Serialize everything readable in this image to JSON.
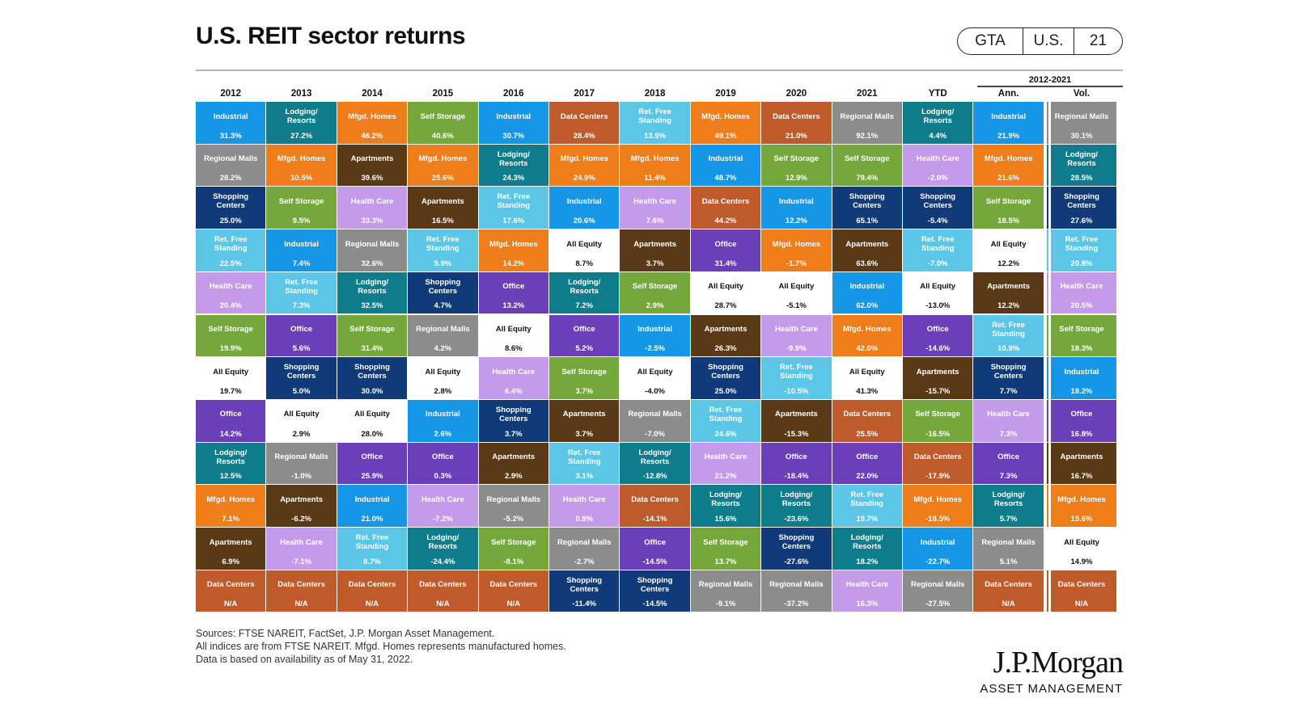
{
  "header": {
    "title": "U.S. REIT sector returns",
    "badge": [
      "GTA",
      "U.S.",
      "21"
    ]
  },
  "column_headers": [
    "2012",
    "2013",
    "2014",
    "2015",
    "2016",
    "2017",
    "2018",
    "2019",
    "2020",
    "2021",
    "YTD",
    "Ann.",
    "Vol."
  ],
  "span_label": "2012-2021",
  "footnotes": [
    "Sources: FTSE NAREIT, FactSet, J.P. Morgan Asset Management.",
    "All indices are from FTSE NAREIT. Mfgd. Homes represents manufactured homes.",
    "Data is based on availability as of May 31, 2022."
  ],
  "logo": {
    "line1": "J.P.Morgan",
    "line2": "ASSET MANAGEMENT"
  },
  "colors": {
    "Industrial": "#1596e6",
    "Lodging/ Resorts": "#0f7c8c",
    "Mfgd. Homes": "#ef7d1a",
    "Self Storage": "#74a83a",
    "Data Centers": "#bf5a2b",
    "Ret. Free Standing": "#5cc6e8",
    "Regional Malls": "#8c8c8c",
    "Health Care": "#c39bea",
    "Shopping Centers": "#103b78",
    "Apartments": "#5a3a16",
    "All Equity": "#ffffff",
    "Office": "#6b3fb8"
  },
  "chart_data": {
    "type": "table",
    "title": "U.S. REIT sector returns",
    "columns": [
      "2012",
      "2013",
      "2014",
      "2015",
      "2016",
      "2017",
      "2018",
      "2019",
      "2020",
      "2021",
      "YTD",
      "Ann.",
      "Vol."
    ],
    "rows": [
      [
        [
          "Industrial",
          "31.3%"
        ],
        [
          "Lodging/ Resorts",
          "27.2%"
        ],
        [
          "Mfgd. Homes",
          "46.2%"
        ],
        [
          "Self Storage",
          "40.6%"
        ],
        [
          "Industrial",
          "30.7%"
        ],
        [
          "Data Centers",
          "28.4%"
        ],
        [
          "Ret. Free Standing",
          "13.9%"
        ],
        [
          "Mfgd. Homes",
          "49.1%"
        ],
        [
          "Data Centers",
          "21.0%"
        ],
        [
          "Regional Malls",
          "92.1%"
        ],
        [
          "Lodging/ Resorts",
          "4.4%"
        ],
        [
          "Industrial",
          "21.9%"
        ],
        [
          "Regional Malls",
          "30.1%"
        ]
      ],
      [
        [
          "Regional Malls",
          "28.2%"
        ],
        [
          "Mfgd. Homes",
          "10.5%"
        ],
        [
          "Apartments",
          "39.6%"
        ],
        [
          "Mfgd. Homes",
          "25.6%"
        ],
        [
          "Lodging/ Resorts",
          "24.3%"
        ],
        [
          "Mfgd. Homes",
          "24.9%"
        ],
        [
          "Mfgd. Homes",
          "11.4%"
        ],
        [
          "Industrial",
          "48.7%"
        ],
        [
          "Self Storage",
          "12.9%"
        ],
        [
          "Self Storage",
          "79.4%"
        ],
        [
          "Health Care",
          "-2.0%"
        ],
        [
          "Mfgd. Homes",
          "21.6%"
        ],
        [
          "Lodging/ Resorts",
          "28.5%"
        ]
      ],
      [
        [
          "Shopping Centers",
          "25.0%"
        ],
        [
          "Self Storage",
          "9.5%"
        ],
        [
          "Health Care",
          "33.3%"
        ],
        [
          "Apartments",
          "16.5%"
        ],
        [
          "Ret. Free Standing",
          "17.6%"
        ],
        [
          "Industrial",
          "20.6%"
        ],
        [
          "Health Care",
          "7.6%"
        ],
        [
          "Data Centers",
          "44.2%"
        ],
        [
          "Industrial",
          "12.2%"
        ],
        [
          "Shopping Centers",
          "65.1%"
        ],
        [
          "Shopping Centers",
          "-5.4%"
        ],
        [
          "Self Storage",
          "18.5%"
        ],
        [
          "Shopping Centers",
          "27.6%"
        ]
      ],
      [
        [
          "Ret. Free Standing",
          "22.5%"
        ],
        [
          "Industrial",
          "7.4%"
        ],
        [
          "Regional Malls",
          "32.6%"
        ],
        [
          "Ret. Free Standing",
          "5.9%"
        ],
        [
          "Mfgd. Homes",
          "14.2%"
        ],
        [
          "All Equity",
          "8.7%"
        ],
        [
          "Apartments",
          "3.7%"
        ],
        [
          "Office",
          "31.4%"
        ],
        [
          "Mfgd. Homes",
          "-1.7%"
        ],
        [
          "Apartments",
          "63.6%"
        ],
        [
          "Ret. Free Standing",
          "-7.0%"
        ],
        [
          "All Equity",
          "12.2%"
        ],
        [
          "Ret. Free Standing",
          "20.8%"
        ]
      ],
      [
        [
          "Health Care",
          "20.4%"
        ],
        [
          "Ret. Free Standing",
          "7.3%"
        ],
        [
          "Lodging/ Resorts",
          "32.5%"
        ],
        [
          "Shopping Centers",
          "4.7%"
        ],
        [
          "Office",
          "13.2%"
        ],
        [
          "Lodging/ Resorts",
          "7.2%"
        ],
        [
          "Self Storage",
          "2.9%"
        ],
        [
          "All Equity",
          "28.7%"
        ],
        [
          "All Equity",
          "-5.1%"
        ],
        [
          "Industrial",
          "62.0%"
        ],
        [
          "All Equity",
          "-13.0%"
        ],
        [
          "Apartments",
          "12.2%"
        ],
        [
          "Health Care",
          "20.5%"
        ]
      ],
      [
        [
          "Self Storage",
          "19.9%"
        ],
        [
          "Office",
          "5.6%"
        ],
        [
          "Self Storage",
          "31.4%"
        ],
        [
          "Regional Malls",
          "4.2%"
        ],
        [
          "All Equity",
          "8.6%"
        ],
        [
          "Office",
          "5.2%"
        ],
        [
          "Industrial",
          "-2.5%"
        ],
        [
          "Apartments",
          "26.3%"
        ],
        [
          "Health Care",
          "-9.9%"
        ],
        [
          "Mfgd. Homes",
          "42.0%"
        ],
        [
          "Office",
          "-14.6%"
        ],
        [
          "Ret. Free Standing",
          "10.9%"
        ],
        [
          "Self Storage",
          "18.3%"
        ]
      ],
      [
        [
          "All Equity",
          "19.7%"
        ],
        [
          "Shopping Centers",
          "5.0%"
        ],
        [
          "Shopping Centers",
          "30.0%"
        ],
        [
          "All Equity",
          "2.8%"
        ],
        [
          "Health Care",
          "6.4%"
        ],
        [
          "Self Storage",
          "3.7%"
        ],
        [
          "All Equity",
          "-4.0%"
        ],
        [
          "Shopping Centers",
          "25.0%"
        ],
        [
          "Ret. Free Standing",
          "-10.5%"
        ],
        [
          "All Equity",
          "41.3%"
        ],
        [
          "Apartments",
          "-15.7%"
        ],
        [
          "Shopping Centers",
          "7.7%"
        ],
        [
          "Industrial",
          "18.2%"
        ]
      ],
      [
        [
          "Office",
          "14.2%"
        ],
        [
          "All Equity",
          "2.9%"
        ],
        [
          "All Equity",
          "28.0%"
        ],
        [
          "Industrial",
          "2.6%"
        ],
        [
          "Shopping Centers",
          "3.7%"
        ],
        [
          "Apartments",
          "3.7%"
        ],
        [
          "Regional Malls",
          "-7.0%"
        ],
        [
          "Ret. Free Standing",
          "24.6%"
        ],
        [
          "Apartments",
          "-15.3%"
        ],
        [
          "Data Centers",
          "25.5%"
        ],
        [
          "Self Storage",
          "-16.5%"
        ],
        [
          "Health Care",
          "7.3%"
        ],
        [
          "Office",
          "16.8%"
        ]
      ],
      [
        [
          "Lodging/ Resorts",
          "12.5%"
        ],
        [
          "Regional Malls",
          "-1.0%"
        ],
        [
          "Office",
          "25.9%"
        ],
        [
          "Office",
          "0.3%"
        ],
        [
          "Apartments",
          "2.9%"
        ],
        [
          "Ret. Free Standing",
          "3.1%"
        ],
        [
          "Lodging/ Resorts",
          "-12.8%"
        ],
        [
          "Health Care",
          "21.2%"
        ],
        [
          "Office",
          "-18.4%"
        ],
        [
          "Office",
          "22.0%"
        ],
        [
          "Data Centers",
          "-17.9%"
        ],
        [
          "Office",
          "7.3%"
        ],
        [
          "Apartments",
          "16.7%"
        ]
      ],
      [
        [
          "Mfgd. Homes",
          "7.1%"
        ],
        [
          "Apartments",
          "-6.2%"
        ],
        [
          "Industrial",
          "21.0%"
        ],
        [
          "Health Care",
          "-7.2%"
        ],
        [
          "Regional Malls",
          "-5.2%"
        ],
        [
          "Health Care",
          "0.9%"
        ],
        [
          "Data Centers",
          "-14.1%"
        ],
        [
          "Lodging/ Resorts",
          "15.6%"
        ],
        [
          "Lodging/ Resorts",
          "-23.6%"
        ],
        [
          "Ret. Free Standing",
          "19.7%"
        ],
        [
          "Mfgd. Homes",
          "-18.5%"
        ],
        [
          "Lodging/ Resorts",
          "5.7%"
        ],
        [
          "Mfgd. Homes",
          "15.6%"
        ]
      ],
      [
        [
          "Apartments",
          "6.9%"
        ],
        [
          "Health Care",
          "-7.1%"
        ],
        [
          "Ret. Free Standing",
          "8.7%"
        ],
        [
          "Lodging/ Resorts",
          "-24.4%"
        ],
        [
          "Self Storage",
          "-8.1%"
        ],
        [
          "Regional Malls",
          "-2.7%"
        ],
        [
          "Office",
          "-14.5%"
        ],
        [
          "Self Storage",
          "13.7%"
        ],
        [
          "Shopping Centers",
          "-27.6%"
        ],
        [
          "Lodging/ Resorts",
          "18.2%"
        ],
        [
          "Industrial",
          "-22.7%"
        ],
        [
          "Regional Malls",
          "5.1%"
        ],
        [
          "All Equity",
          "14.9%"
        ]
      ],
      [
        [
          "Data Centers",
          "N/A"
        ],
        [
          "Data Centers",
          "N/A"
        ],
        [
          "Data Centers",
          "N/A"
        ],
        [
          "Data Centers",
          "N/A"
        ],
        [
          "Data Centers",
          "N/A"
        ],
        [
          "Shopping Centers",
          "-11.4%"
        ],
        [
          "Shopping Centers",
          "-14.5%"
        ],
        [
          "Regional Malls",
          "-9.1%"
        ],
        [
          "Regional Malls",
          "-37.2%"
        ],
        [
          "Health Care",
          "16.3%"
        ],
        [
          "Regional Malls",
          "-27.5%"
        ],
        [
          "Data Centers",
          "N/A"
        ],
        [
          "Data Centers",
          "N/A"
        ]
      ]
    ]
  }
}
